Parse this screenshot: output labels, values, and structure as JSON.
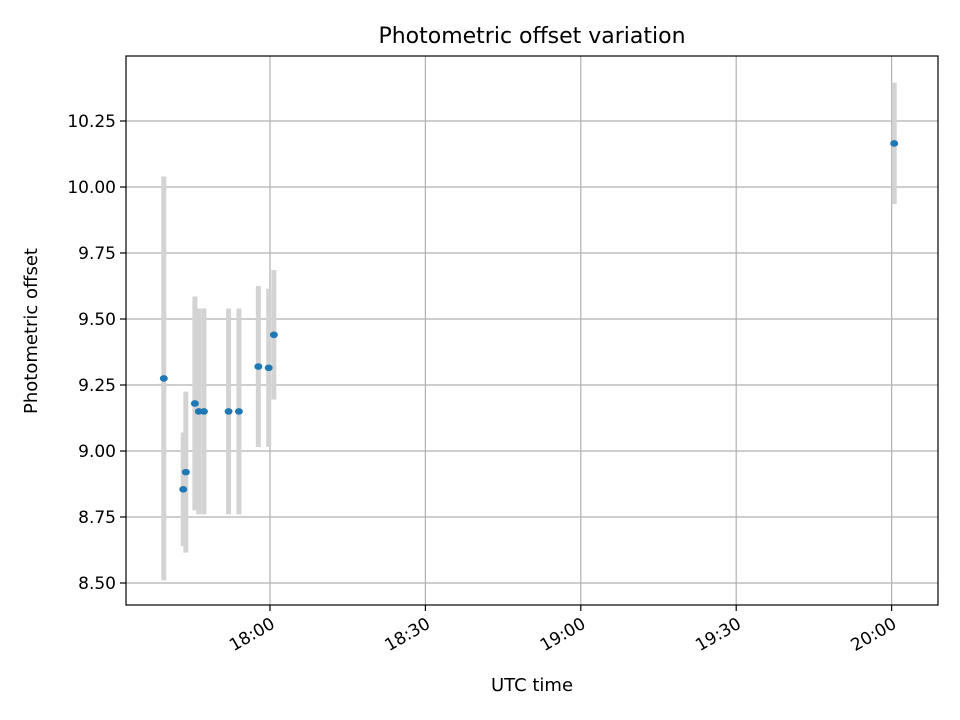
{
  "chart_data": {
    "type": "scatter",
    "title": "Photometric offset variation",
    "xlabel": "UTC time",
    "ylabel": "Photometric offset",
    "x_ticks": [
      "18:00",
      "18:30",
      "19:00",
      "19:30",
      "20:00"
    ],
    "y_ticks": [
      "8.50",
      "8.75",
      "9.00",
      "9.25",
      "9.50",
      "9.75",
      "10.00",
      "10.25"
    ],
    "xlim": [
      "17:52:45",
      "20:08:00"
    ],
    "ylim": [
      8.42,
      10.5
    ],
    "grid": true,
    "marker_color": "#1f77b4",
    "errorbar_color": "#d3d3d3",
    "points": [
      {
        "time": "17:39:30",
        "y": 9.275,
        "yerr": 0.765
      },
      {
        "time": "17:43:15",
        "y": 8.855,
        "yerr": 0.215
      },
      {
        "time": "17:43:45",
        "y": 8.92,
        "yerr": 0.305
      },
      {
        "time": "17:45:30",
        "y": 9.18,
        "yerr": 0.405
      },
      {
        "time": "17:46:15",
        "y": 9.15,
        "yerr": 0.39
      },
      {
        "time": "17:47:15",
        "y": 9.15,
        "yerr": 0.39
      },
      {
        "time": "17:52:00",
        "y": 9.15,
        "yerr": 0.39
      },
      {
        "time": "17:54:00",
        "y": 9.15,
        "yerr": 0.39
      },
      {
        "time": "17:57:45",
        "y": 9.32,
        "yerr": 0.305
      },
      {
        "time": "17:59:45",
        "y": 9.315,
        "yerr": 0.3
      },
      {
        "time": "18:00:45",
        "y": 9.44,
        "yerr": 0.245
      },
      {
        "time": "20:00:30",
        "y": 10.165,
        "yerr": 0.23
      }
    ]
  }
}
